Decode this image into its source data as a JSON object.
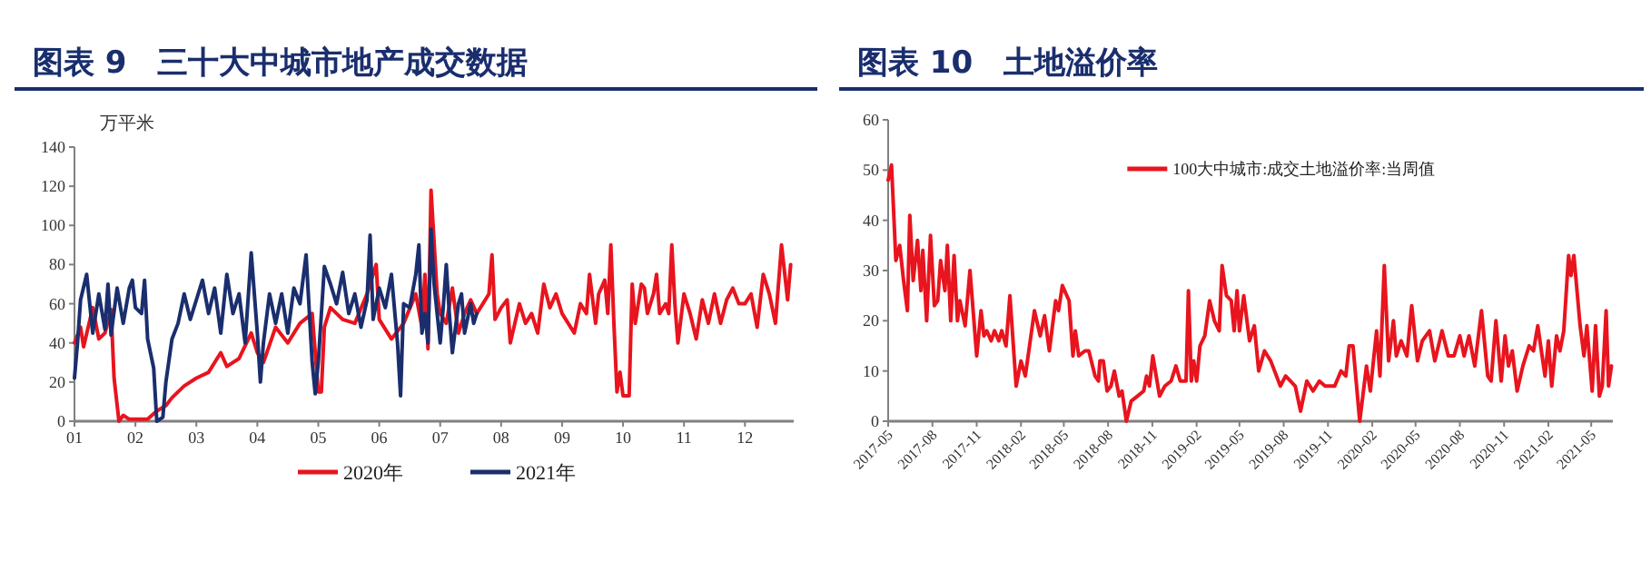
{
  "chart_data": [
    {
      "type": "line",
      "title": "图表 9　三十大中城市地产成交数据",
      "ylabel": "万平米",
      "xlim": [
        1,
        12.8
      ],
      "xticks": [
        {
          "value": 1,
          "label": "01"
        },
        {
          "value": 2,
          "label": "02"
        },
        {
          "value": 3,
          "label": "03"
        },
        {
          "value": 4,
          "label": "04"
        },
        {
          "value": 5,
          "label": "05"
        },
        {
          "value": 6,
          "label": "06"
        },
        {
          "value": 7,
          "label": "07"
        },
        {
          "value": 8,
          "label": "08"
        },
        {
          "value": 9,
          "label": "09"
        },
        {
          "value": 10,
          "label": "10"
        },
        {
          "value": 11,
          "label": "11"
        },
        {
          "value": 12,
          "label": "12"
        }
      ],
      "ylim": [
        0,
        140
      ],
      "yticks": [
        0,
        20,
        40,
        60,
        80,
        100,
        120,
        140
      ],
      "legend": "bottom",
      "grid": false,
      "line_style": "solid",
      "series": [
        {
          "name": "2020年",
          "color": "#e8141e",
          "x": [
            1.0,
            1.1,
            1.15,
            1.3,
            1.4,
            1.5,
            1.6,
            1.65,
            1.73,
            1.8,
            1.9,
            2.0,
            2.2,
            2.34,
            2.5,
            2.6,
            2.8,
            3.0,
            3.2,
            3.4,
            3.5,
            3.7,
            3.9,
            4.0,
            4.1,
            4.3,
            4.5,
            4.7,
            4.9,
            5.0,
            5.05,
            5.1,
            5.2,
            5.4,
            5.6,
            5.8,
            5.95,
            6.0,
            6.2,
            6.4,
            6.6,
            6.7,
            6.75,
            6.8,
            6.85,
            6.95,
            7.0,
            7.1,
            7.2,
            7.3,
            7.4,
            7.5,
            7.6,
            7.7,
            7.8,
            7.85,
            7.9,
            8.0,
            8.1,
            8.15,
            8.3,
            8.4,
            8.5,
            8.6,
            8.7,
            8.8,
            8.9,
            9.0,
            9.2,
            9.3,
            9.4,
            9.45,
            9.55,
            9.6,
            9.7,
            9.75,
            9.8,
            9.85,
            9.9,
            9.95,
            10.0,
            10.1,
            10.15,
            10.2,
            10.3,
            10.35,
            10.4,
            10.5,
            10.55,
            10.6,
            10.7,
            10.75,
            10.8,
            10.85,
            10.9,
            11.0,
            11.1,
            11.2,
            11.3,
            11.4,
            11.5,
            11.6,
            11.7,
            11.8,
            11.9,
            12.0,
            12.1,
            12.2,
            12.3,
            12.4,
            12.5,
            12.6,
            12.7,
            12.75
          ],
          "values": [
            40,
            48,
            38,
            58,
            42,
            45,
            57,
            22,
            0,
            3,
            1,
            1,
            1,
            5,
            8,
            12,
            18,
            22,
            25,
            35,
            28,
            32,
            45,
            35,
            30,
            48,
            40,
            50,
            55,
            15,
            15,
            48,
            58,
            52,
            50,
            65,
            80,
            52,
            42,
            50,
            65,
            48,
            75,
            37,
            118,
            65,
            55,
            50,
            68,
            45,
            55,
            62,
            55,
            60,
            65,
            85,
            52,
            58,
            62,
            40,
            60,
            50,
            55,
            45,
            70,
            58,
            65,
            55,
            45,
            60,
            55,
            75,
            50,
            65,
            72,
            55,
            90,
            50,
            15,
            25,
            13,
            13,
            70,
            50,
            70,
            68,
            55,
            65,
            75,
            55,
            60,
            55,
            90,
            60,
            40,
            65,
            55,
            42,
            62,
            50,
            65,
            50,
            62,
            68,
            60,
            60,
            65,
            48,
            75,
            65,
            50,
            90,
            62,
            80
          ]
        },
        {
          "name": "2021年",
          "color": "#1a2e6e",
          "x": [
            1.0,
            1.05,
            1.1,
            1.2,
            1.3,
            1.4,
            1.5,
            1.55,
            1.6,
            1.7,
            1.8,
            1.9,
            1.95,
            2.0,
            2.1,
            2.15,
            2.2,
            2.3,
            2.35,
            2.45,
            2.5,
            2.6,
            2.7,
            2.8,
            2.9,
            3.0,
            3.1,
            3.2,
            3.3,
            3.4,
            3.5,
            3.6,
            3.7,
            3.8,
            3.9,
            4.0,
            4.05,
            4.1,
            4.2,
            4.3,
            4.4,
            4.5,
            4.6,
            4.7,
            4.8,
            4.9,
            4.95,
            5.0,
            5.1,
            5.2,
            5.3,
            5.4,
            5.5,
            5.6,
            5.7,
            5.8,
            5.85,
            5.9,
            6.0,
            6.1,
            6.2,
            6.3,
            6.35,
            6.4,
            6.5,
            6.6,
            6.65,
            6.7,
            6.75,
            6.8,
            6.85,
            6.9,
            7.0,
            7.05,
            7.1,
            7.15,
            7.2,
            7.3,
            7.35,
            7.4,
            7.5,
            7.55,
            7.6
          ],
          "values": [
            22,
            40,
            62,
            75,
            45,
            65,
            47,
            70,
            44,
            68,
            50,
            68,
            72,
            58,
            55,
            72,
            42,
            27,
            0,
            2,
            20,
            42,
            50,
            65,
            52,
            62,
            72,
            55,
            68,
            45,
            75,
            55,
            65,
            40,
            86,
            45,
            20,
            40,
            65,
            50,
            65,
            45,
            68,
            60,
            85,
            30,
            14,
            30,
            79,
            70,
            60,
            76,
            55,
            65,
            48,
            62,
            95,
            52,
            68,
            58,
            75,
            40,
            13,
            60,
            58,
            75,
            90,
            45,
            55,
            40,
            98,
            70,
            40,
            58,
            80,
            55,
            35,
            60,
            65,
            45,
            60,
            50,
            55
          ]
        }
      ]
    },
    {
      "type": "line",
      "title": "图表 10　土地溢价率",
      "ylim": [
        0,
        60
      ],
      "yticks": [
        0,
        10,
        20,
        30,
        40,
        50,
        60
      ],
      "xlim": [
        "2017-05-01",
        "2021-06-15"
      ],
      "xticks": [
        {
          "value": "2017-05-01",
          "label": "2017-05"
        },
        {
          "value": "2017-08-01",
          "label": "2017-08"
        },
        {
          "value": "2017-11-01",
          "label": "2017-11"
        },
        {
          "value": "2018-02-01",
          "label": "2018-02"
        },
        {
          "value": "2018-05-01",
          "label": "2018-05"
        },
        {
          "value": "2018-08-01",
          "label": "2018-08"
        },
        {
          "value": "2018-11-01",
          "label": "2018-11"
        },
        {
          "value": "2019-02-01",
          "label": "2019-02"
        },
        {
          "value": "2019-05-01",
          "label": "2019-05"
        },
        {
          "value": "2019-08-01",
          "label": "2019-08"
        },
        {
          "value": "2019-11-01",
          "label": "2019-11"
        },
        {
          "value": "2020-02-01",
          "label": "2020-02"
        },
        {
          "value": "2020-05-01",
          "label": "2020-05"
        },
        {
          "value": "2020-08-01",
          "label": "2020-08"
        },
        {
          "value": "2020-11-01",
          "label": "2020-11"
        },
        {
          "value": "2021-02-01",
          "label": "2021-02"
        },
        {
          "value": "2021-05-01",
          "label": "2021-05"
        }
      ],
      "legend": "top right",
      "grid": false,
      "line_style": "solid",
      "series": [
        {
          "name": "100大中城市:成交土地溢价率:当周值",
          "color": "#e8141e",
          "x": [
            "2017-05-01",
            "2017-05-08",
            "2017-05-17",
            "2017-05-25",
            "2017-06-02",
            "2017-06-10",
            "2017-06-15",
            "2017-06-22",
            "2017-07-01",
            "2017-07-08",
            "2017-07-12",
            "2017-07-20",
            "2017-07-28",
            "2017-08-05",
            "2017-08-12",
            "2017-08-18",
            "2017-08-27",
            "2017-09-01",
            "2017-09-08",
            "2017-09-15",
            "2017-09-22",
            "2017-09-27",
            "2017-10-08",
            "2017-10-18",
            "2017-11-01",
            "2017-11-10",
            "2017-11-16",
            "2017-11-22",
            "2017-12-01",
            "2017-12-08",
            "2017-12-17",
            "2017-12-23",
            "2018-01-01",
            "2018-01-09",
            "2018-01-22",
            "2018-02-01",
            "2018-02-10",
            "2018-03-01",
            "2018-03-13",
            "2018-03-22",
            "2018-04-01",
            "2018-04-14",
            "2018-04-20",
            "2018-04-28",
            "2018-05-12",
            "2018-05-20",
            "2018-05-25",
            "2018-06-01",
            "2018-06-14",
            "2018-06-22",
            "2018-07-05",
            "2018-07-12",
            "2018-07-15",
            "2018-07-22",
            "2018-07-30",
            "2018-08-07",
            "2018-08-14",
            "2018-08-24",
            "2018-08-30",
            "2018-09-08",
            "2018-09-18",
            "2018-10-01",
            "2018-10-14",
            "2018-10-20",
            "2018-10-26",
            "2018-11-02",
            "2018-11-16",
            "2018-11-27",
            "2018-12-10",
            "2018-12-20",
            "2018-12-29",
            "2019-01-10",
            "2019-01-15",
            "2019-01-21",
            "2019-01-26",
            "2019-02-01",
            "2019-02-08",
            "2019-02-18",
            "2019-02-28",
            "2019-03-10",
            "2019-03-20",
            "2019-03-26",
            "2019-04-04",
            "2019-04-14",
            "2019-04-20",
            "2019-04-26",
            "2019-05-01",
            "2019-05-10",
            "2019-05-22",
            "2019-06-01",
            "2019-06-10",
            "2019-06-22",
            "2019-07-05",
            "2019-07-25",
            "2019-08-05",
            "2019-08-25",
            "2019-09-05",
            "2019-09-18",
            "2019-10-01",
            "2019-10-14",
            "2019-10-26",
            "2019-11-15",
            "2019-11-28",
            "2019-12-08",
            "2019-12-15",
            "2019-12-23",
            "2020-01-06",
            "2020-01-20",
            "2020-01-28",
            "2020-02-10",
            "2020-02-17",
            "2020-02-26",
            "2020-03-06",
            "2020-03-16",
            "2020-03-22",
            "2020-04-01",
            "2020-04-13",
            "2020-04-23",
            "2020-05-05",
            "2020-05-15",
            "2020-05-30",
            "2020-06-10",
            "2020-06-25",
            "2020-07-08",
            "2020-07-20",
            "2020-08-01",
            "2020-08-10",
            "2020-08-20",
            "2020-09-01",
            "2020-09-15",
            "2020-09-28",
            "2020-10-05",
            "2020-10-15",
            "2020-10-26",
            "2020-11-03",
            "2020-11-10",
            "2020-11-18",
            "2020-11-28",
            "2020-12-10",
            "2020-12-23",
            "2021-01-01",
            "2021-01-10",
            "2021-01-25",
            "2021-02-01",
            "2021-02-08",
            "2021-02-18",
            "2021-02-25",
            "2021-03-05",
            "2021-03-15",
            "2021-03-20",
            "2021-03-26",
            "2021-04-08",
            "2021-04-16",
            "2021-04-22",
            "2021-05-03",
            "2021-05-10",
            "2021-05-18",
            "2021-05-24",
            "2021-06-01",
            "2021-06-06",
            "2021-06-12"
          ],
          "values": [
            48,
            51,
            32,
            35,
            28,
            22,
            41,
            28,
            36,
            26,
            34,
            20,
            37,
            23,
            24,
            32,
            26,
            35,
            20,
            33,
            20,
            24,
            19,
            30,
            13,
            22,
            17,
            18,
            16,
            18,
            16,
            18,
            15,
            25,
            7,
            12,
            9,
            22,
            17,
            21,
            14,
            24,
            22,
            27,
            24,
            13,
            18,
            13,
            14,
            14,
            9,
            8,
            12,
            12,
            6,
            7,
            10,
            5,
            6,
            0,
            4,
            5,
            6,
            9,
            7,
            13,
            5,
            7,
            8,
            11,
            8,
            8,
            26,
            8,
            12,
            8,
            15,
            17,
            24,
            20,
            18,
            31,
            25,
            24,
            18,
            26,
            18,
            25,
            16,
            19,
            10,
            14,
            12,
            7,
            9,
            7,
            2,
            8,
            6,
            8,
            7,
            7,
            10,
            9,
            15,
            15,
            0,
            11,
            6,
            18,
            9,
            31,
            12,
            20,
            13,
            16,
            13,
            23,
            12,
            16,
            18,
            12,
            18,
            13,
            13,
            17,
            13,
            17,
            11,
            22,
            9,
            8,
            20,
            8,
            17,
            11,
            14,
            6,
            11,
            15,
            14,
            19,
            9,
            16,
            7,
            17,
            14,
            18,
            33,
            29,
            33,
            19,
            13,
            19,
            6,
            19,
            5,
            7,
            22,
            7,
            11
          ]
        }
      ]
    }
  ]
}
